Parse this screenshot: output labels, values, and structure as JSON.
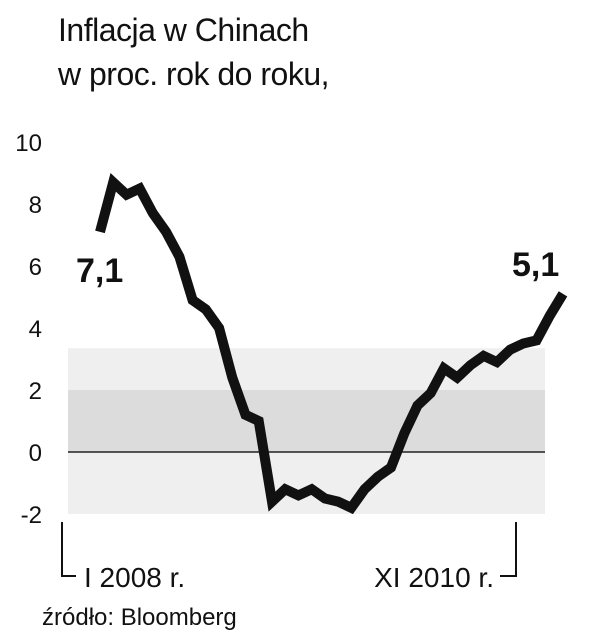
{
  "title_line1": "Inflacja w Chinach",
  "title_line2": "w proc. rok do roku,",
  "source": "źródło: Bloomberg",
  "chart_data": {
    "type": "line",
    "title": "Inflacja w Chinach w proc. rok do roku,",
    "ylim": [
      -2,
      10
    ],
    "yticks": [
      10,
      8,
      6,
      4,
      2,
      0,
      -2
    ],
    "x_start_label": "I 2008 r.",
    "x_end_label": "XI 2010 r.",
    "first_label": "7,1",
    "last_label": "5,1",
    "series": [
      {
        "values": [
          7.1,
          8.7,
          8.3,
          8.5,
          7.7,
          7.1,
          6.3,
          4.9,
          4.6,
          4.0,
          2.4,
          1.2,
          1.0,
          -1.6,
          -1.2,
          -1.4,
          -1.2,
          -1.5,
          -1.6,
          -1.8,
          -1.2,
          -0.8,
          -0.5,
          0.6,
          1.5,
          1.9,
          2.7,
          2.4,
          2.8,
          3.1,
          2.9,
          3.3,
          3.5,
          3.6,
          4.4,
          5.1
        ]
      }
    ],
    "colors": {
      "line": "#111111",
      "band_dark": "#dcdcdc",
      "band_light": "#efefef"
    }
  }
}
